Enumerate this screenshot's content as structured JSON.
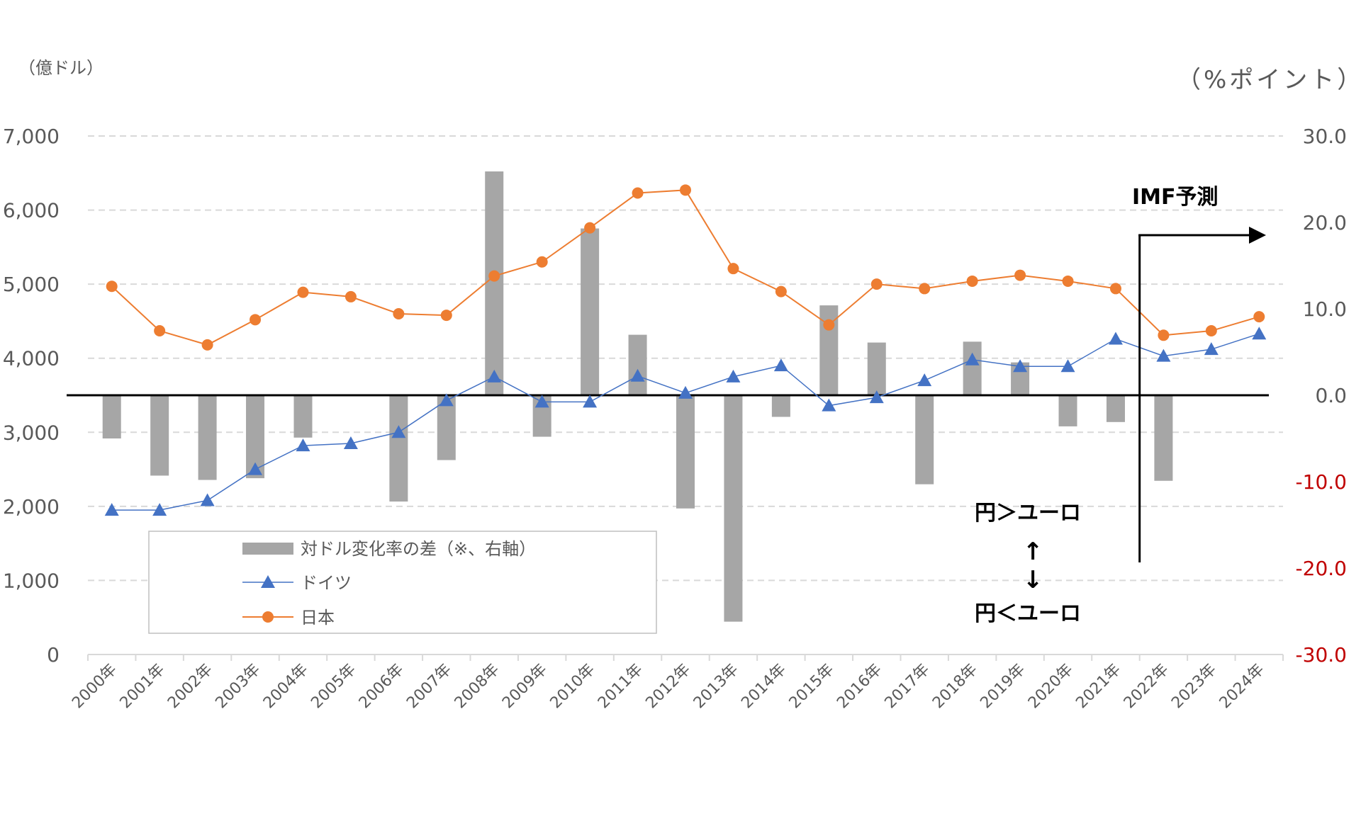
{
  "chart_data": {
    "type": "bar+line",
    "categories": [
      "2000年",
      "2001年",
      "2002年",
      "2003年",
      "2004年",
      "2005年",
      "2006年",
      "2007年",
      "2008年",
      "2009年",
      "2010年",
      "2011年",
      "2012年",
      "2013年",
      "2014年",
      "2015年",
      "2016年",
      "2017年",
      "2018年",
      "2019年",
      "2020年",
      "2021年",
      "2022年",
      "2023年",
      "2024年"
    ],
    "left_axis": {
      "unit_label": "（億ドル）",
      "ylim": [
        0,
        7000
      ],
      "ticks": [
        0,
        1000,
        2000,
        3000,
        4000,
        5000,
        6000,
        7000
      ],
      "tick_labels": [
        "0",
        "1,000",
        "2,000",
        "3,000",
        "4,000",
        "5,000",
        "6,000",
        "7,000"
      ]
    },
    "right_axis": {
      "unit_label": "（%ポイント）",
      "ylim": [
        -30,
        30
      ],
      "ticks": [
        30,
        20,
        10,
        0,
        -10,
        -20,
        -30
      ],
      "tick_labels": [
        "30.0",
        "20.0",
        "10.0",
        "0.0",
        "-10.0",
        "-20.0",
        "-30.0"
      ],
      "negative_color": "#c00000",
      "positive_color": "#595959"
    },
    "series": [
      {
        "name": "対ドル変化率の差（※、右軸）",
        "kind": "bar",
        "axis": "right",
        "color": "#a6a6a6",
        "values": [
          -5.0,
          -9.3,
          -9.8,
          -9.6,
          -4.9,
          0.1,
          -12.3,
          -7.5,
          25.9,
          -4.8,
          19.3,
          7.0,
          -13.1,
          -26.2,
          -2.5,
          10.4,
          6.1,
          -10.3,
          6.2,
          3.8,
          -3.6,
          -3.1,
          -9.9,
          0,
          0
        ]
      },
      {
        "name": "ドイツ",
        "kind": "line",
        "marker": "triangle",
        "axis": "left",
        "color": "#4472c4",
        "values": [
          1950,
          1950,
          2080,
          2500,
          2820,
          2850,
          3000,
          3430,
          3750,
          3410,
          3410,
          3760,
          3530,
          3750,
          3900,
          3360,
          3470,
          3700,
          3980,
          3890,
          3890,
          4260,
          4030,
          4120,
          4330
        ]
      },
      {
        "name": "日本",
        "kind": "line",
        "marker": "circle",
        "axis": "left",
        "color": "#ed7d31",
        "values": [
          4970,
          4370,
          4180,
          4520,
          4890,
          4830,
          4600,
          4580,
          5110,
          5300,
          5760,
          6230,
          6270,
          5210,
          4900,
          4450,
          5000,
          4940,
          5040,
          5120,
          5040,
          4940,
          4310,
          4370,
          4560
        ]
      }
    ],
    "annotations": {
      "forecast_label": "IMF予測",
      "yen_strong": "円＞ユーロ",
      "arrow_up": "↑",
      "arrow_down": "↓",
      "yen_weak": "円＜ユーロ"
    },
    "grid": true,
    "legend_position": "bottom-left"
  }
}
